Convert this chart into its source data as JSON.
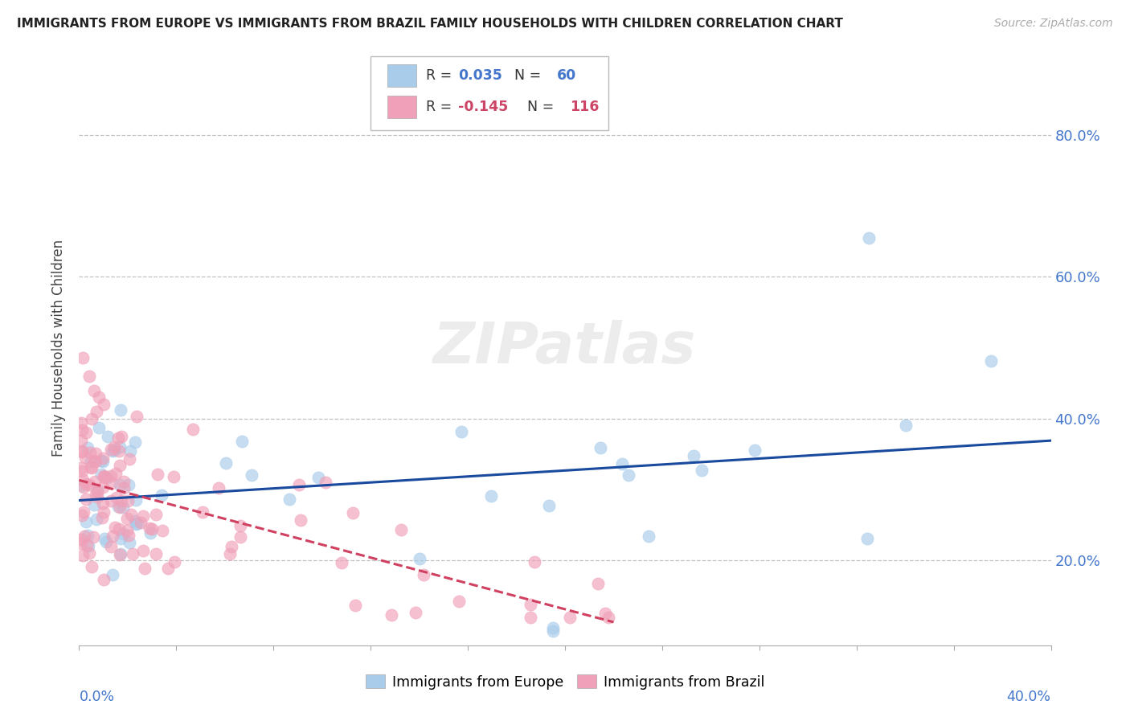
{
  "title": "IMMIGRANTS FROM EUROPE VS IMMIGRANTS FROM BRAZIL FAMILY HOUSEHOLDS WITH CHILDREN CORRELATION CHART",
  "source": "Source: ZipAtlas.com",
  "ylabel": "Family Households with Children",
  "ytick_values": [
    0.2,
    0.4,
    0.6,
    0.8
  ],
  "ytick_labels": [
    "20.0%",
    "40.0%",
    "60.0%",
    "80.0%"
  ],
  "xlim": [
    0.0,
    0.4
  ],
  "ylim": [
    0.08,
    0.92
  ],
  "color_europe": "#A8CCEA",
  "color_brazil": "#F0A0B8",
  "trendline_europe_color": "#1A4A9E",
  "trendline_brazil_color": "#D04060",
  "watermark": "ZIPatlas",
  "R_europe": 0.035,
  "N_europe": 60,
  "R_brazil": -0.145,
  "N_brazil": 116
}
